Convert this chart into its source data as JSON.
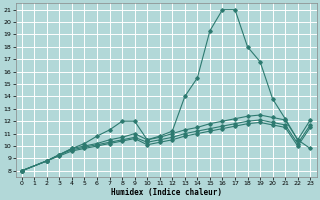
{
  "xlabel": "Humidex (Indice chaleur)",
  "background_color": "#b2d8d8",
  "grid_color": "#ffffff",
  "line_color": "#2d7a70",
  "xlim": [
    -0.5,
    23.5
  ],
  "ylim": [
    7.5,
    21.5
  ],
  "xticks": [
    0,
    1,
    2,
    3,
    4,
    5,
    6,
    7,
    8,
    9,
    10,
    11,
    12,
    13,
    14,
    15,
    16,
    17,
    18,
    19,
    20,
    21,
    22,
    23
  ],
  "yticks": [
    8,
    9,
    10,
    11,
    12,
    13,
    14,
    15,
    16,
    17,
    18,
    19,
    20,
    21
  ],
  "lines": [
    {
      "x": [
        0,
        2,
        3,
        4,
        5,
        6,
        7,
        8,
        9,
        10,
        11,
        12,
        13,
        14,
        15,
        16,
        17,
        18,
        19,
        20,
        21,
        22,
        23
      ],
      "y": [
        8,
        8.8,
        9.3,
        9.8,
        10.2,
        10.8,
        11.3,
        12.0,
        12.0,
        10.5,
        10.8,
        11.2,
        14.0,
        15.5,
        19.3,
        21.0,
        21.0,
        18.0,
        16.8,
        13.8,
        12.2,
        10.5,
        9.8
      ]
    },
    {
      "x": [
        0,
        2,
        3,
        4,
        5,
        6,
        7,
        8,
        9,
        10,
        11,
        12,
        13,
        14,
        15,
        16,
        17,
        18,
        19,
        20,
        21,
        22,
        23
      ],
      "y": [
        8,
        8.8,
        9.3,
        9.8,
        10.0,
        10.2,
        10.5,
        10.7,
        11.0,
        10.5,
        10.7,
        11.0,
        11.3,
        11.5,
        11.8,
        12.0,
        12.2,
        12.4,
        12.5,
        12.3,
        12.1,
        10.5,
        12.1
      ]
    },
    {
      "x": [
        0,
        2,
        3,
        4,
        5,
        6,
        7,
        8,
        9,
        10,
        11,
        12,
        13,
        14,
        15,
        16,
        17,
        18,
        19,
        20,
        21,
        22,
        23
      ],
      "y": [
        8,
        8.8,
        9.3,
        9.7,
        9.9,
        10.1,
        10.3,
        10.5,
        10.7,
        10.3,
        10.5,
        10.7,
        11.0,
        11.2,
        11.4,
        11.6,
        11.8,
        12.0,
        12.1,
        11.9,
        11.7,
        10.2,
        11.7
      ]
    },
    {
      "x": [
        0,
        2,
        3,
        4,
        5,
        6,
        7,
        8,
        9,
        10,
        11,
        12,
        13,
        14,
        15,
        16,
        17,
        18,
        19,
        20,
        21,
        22,
        23
      ],
      "y": [
        8,
        8.8,
        9.2,
        9.6,
        9.8,
        10.0,
        10.2,
        10.4,
        10.6,
        10.1,
        10.3,
        10.5,
        10.8,
        11.0,
        11.2,
        11.4,
        11.6,
        11.8,
        11.9,
        11.7,
        11.5,
        10.0,
        11.5
      ]
    }
  ]
}
